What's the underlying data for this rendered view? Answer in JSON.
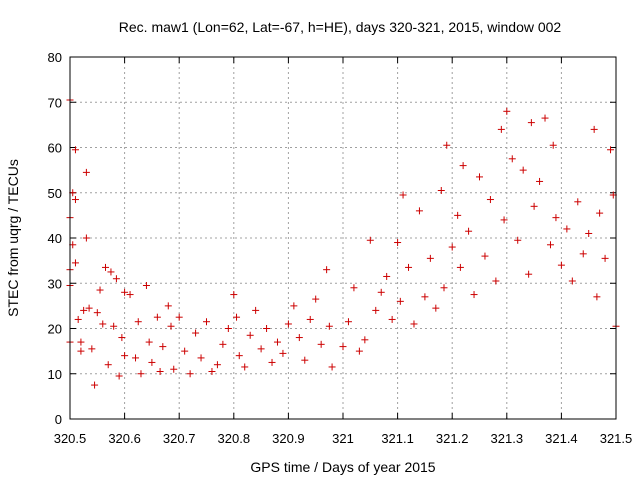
{
  "chart_data": {
    "type": "scatter",
    "title": "Rec. maw1 (Lon=62, Lat=-67, h=HE), days 320-321, 2015, window 002",
    "xlabel": "GPS time / Days of year 2015",
    "ylabel": "STEC from uqrg / TECUs",
    "xlim": [
      320.5,
      321.5
    ],
    "ylim": [
      0,
      80
    ],
    "xticks": [
      "320.5",
      "320.6",
      "320.7",
      "320.8",
      "320.9",
      "321",
      "321.1",
      "321.2",
      "321.3",
      "321.4",
      "321.5"
    ],
    "yticks": [
      "0",
      "10",
      "20",
      "30",
      "40",
      "50",
      "60",
      "70",
      "80"
    ],
    "grid": true,
    "marker": "+",
    "color": "#cc0000",
    "series": [
      {
        "values": [
          [
            320.5,
            70.5
          ],
          [
            320.5,
            44.5
          ],
          [
            320.5,
            33.0
          ],
          [
            320.5,
            29.5
          ],
          [
            320.5,
            17.0
          ],
          [
            320.505,
            50.0
          ],
          [
            320.505,
            38.5
          ],
          [
            320.51,
            59.5
          ],
          [
            320.51,
            48.5
          ],
          [
            320.51,
            34.5
          ],
          [
            320.515,
            22.0
          ],
          [
            320.52,
            17.0
          ],
          [
            320.52,
            15.0
          ],
          [
            320.525,
            24.0
          ],
          [
            320.53,
            54.5
          ],
          [
            320.53,
            40.0
          ],
          [
            320.535,
            24.5
          ],
          [
            320.54,
            15.5
          ],
          [
            320.545,
            7.5
          ],
          [
            320.55,
            23.5
          ],
          [
            320.555,
            28.5
          ],
          [
            320.56,
            21.0
          ],
          [
            320.565,
            33.5
          ],
          [
            320.57,
            12.0
          ],
          [
            320.575,
            32.5
          ],
          [
            320.58,
            20.5
          ],
          [
            320.585,
            31.0
          ],
          [
            320.59,
            9.5
          ],
          [
            320.595,
            18.0
          ],
          [
            320.6,
            28.0
          ],
          [
            320.6,
            14.0
          ],
          [
            320.61,
            27.5
          ],
          [
            320.62,
            13.5
          ],
          [
            320.625,
            21.5
          ],
          [
            320.63,
            10.0
          ],
          [
            320.64,
            29.5
          ],
          [
            320.645,
            17.0
          ],
          [
            320.65,
            12.5
          ],
          [
            320.66,
            22.5
          ],
          [
            320.665,
            10.5
          ],
          [
            320.67,
            16.0
          ],
          [
            320.68,
            25.0
          ],
          [
            320.685,
            20.5
          ],
          [
            320.69,
            11.0
          ],
          [
            320.7,
            22.5
          ],
          [
            320.71,
            15.0
          ],
          [
            320.72,
            10.0
          ],
          [
            320.73,
            19.0
          ],
          [
            320.74,
            13.5
          ],
          [
            320.75,
            21.5
          ],
          [
            320.76,
            10.5
          ],
          [
            320.77,
            12.0
          ],
          [
            320.78,
            16.5
          ],
          [
            320.79,
            20.0
          ],
          [
            320.8,
            27.5
          ],
          [
            320.805,
            22.5
          ],
          [
            320.81,
            14.0
          ],
          [
            320.82,
            11.5
          ],
          [
            320.83,
            18.5
          ],
          [
            320.84,
            24.0
          ],
          [
            320.85,
            15.5
          ],
          [
            320.86,
            20.0
          ],
          [
            320.87,
            12.5
          ],
          [
            320.88,
            17.0
          ],
          [
            320.89,
            14.5
          ],
          [
            320.9,
            21.0
          ],
          [
            320.91,
            25.0
          ],
          [
            320.92,
            18.0
          ],
          [
            320.93,
            13.0
          ],
          [
            320.94,
            22.0
          ],
          [
            320.95,
            26.5
          ],
          [
            320.96,
            16.5
          ],
          [
            320.97,
            33.0
          ],
          [
            320.975,
            20.5
          ],
          [
            320.98,
            11.5
          ],
          [
            321.0,
            16.0
          ],
          [
            321.01,
            21.5
          ],
          [
            321.02,
            29.0
          ],
          [
            321.03,
            15.0
          ],
          [
            321.04,
            17.5
          ],
          [
            321.05,
            39.5
          ],
          [
            321.06,
            24.0
          ],
          [
            321.07,
            28.0
          ],
          [
            321.08,
            31.5
          ],
          [
            321.09,
            22.0
          ],
          [
            321.1,
            39.0
          ],
          [
            321.105,
            26.0
          ],
          [
            321.11,
            49.5
          ],
          [
            321.12,
            33.5
          ],
          [
            321.13,
            21.0
          ],
          [
            321.14,
            46.0
          ],
          [
            321.15,
            27.0
          ],
          [
            321.16,
            35.5
          ],
          [
            321.17,
            24.5
          ],
          [
            321.18,
            50.5
          ],
          [
            321.185,
            29.0
          ],
          [
            321.19,
            60.5
          ],
          [
            321.2,
            38.0
          ],
          [
            321.21,
            45.0
          ],
          [
            321.215,
            33.5
          ],
          [
            321.22,
            56.0
          ],
          [
            321.23,
            41.5
          ],
          [
            321.24,
            27.5
          ],
          [
            321.25,
            53.5
          ],
          [
            321.26,
            36.0
          ],
          [
            321.27,
            48.5
          ],
          [
            321.28,
            30.5
          ],
          [
            321.29,
            64.0
          ],
          [
            321.295,
            44.0
          ],
          [
            321.3,
            68.0
          ],
          [
            321.31,
            57.5
          ],
          [
            321.32,
            39.5
          ],
          [
            321.33,
            55.0
          ],
          [
            321.34,
            32.0
          ],
          [
            321.345,
            65.5
          ],
          [
            321.35,
            47.0
          ],
          [
            321.36,
            52.5
          ],
          [
            321.37,
            66.5
          ],
          [
            321.38,
            38.5
          ],
          [
            321.385,
            60.5
          ],
          [
            321.39,
            44.5
          ],
          [
            321.4,
            34.0
          ],
          [
            321.41,
            42.0
          ],
          [
            321.42,
            30.5
          ],
          [
            321.43,
            48.0
          ],
          [
            321.44,
            36.5
          ],
          [
            321.45,
            41.0
          ],
          [
            321.46,
            64.0
          ],
          [
            321.465,
            27.0
          ],
          [
            321.47,
            45.5
          ],
          [
            321.48,
            35.5
          ],
          [
            321.49,
            59.5
          ],
          [
            321.495,
            49.5
          ],
          [
            321.5,
            20.5
          ]
        ]
      }
    ]
  }
}
